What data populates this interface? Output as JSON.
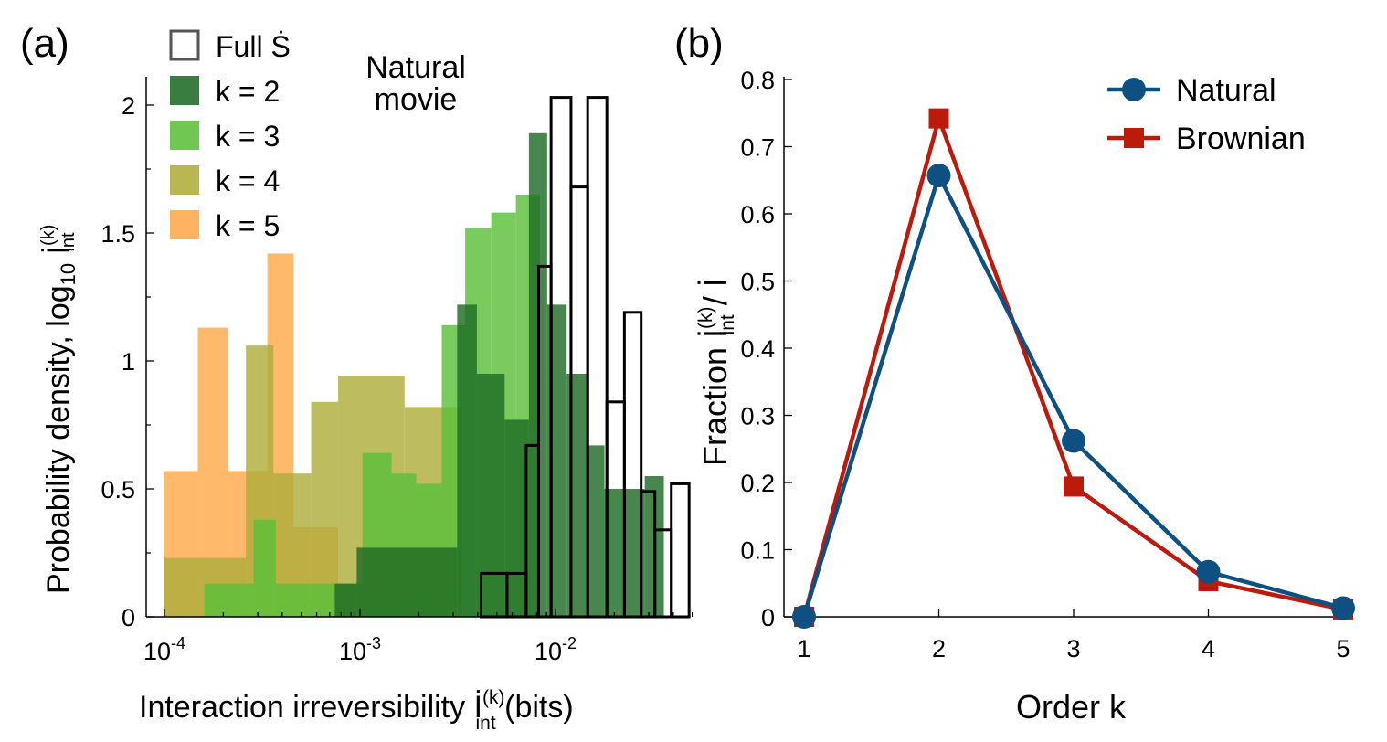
{
  "panels": {
    "a_label": "(a)",
    "b_label": "(b)"
  },
  "colors": {
    "full": "#000000",
    "k2": "#1f6b25",
    "k3": "#5cbf3a",
    "k4": "#aead3a",
    "k5": "#ffa94a",
    "natural": "#0e5081",
    "brownian": "#bb1a0c"
  },
  "chart_data": [
    {
      "panel": "a",
      "type": "histogram",
      "annotation": [
        "Natural",
        "movie"
      ],
      "xlabel": "Interaction irreversibility İ(k)int (bits)",
      "xlabel_parts": {
        "pre": "Interaction irreversibility ",
        "sym": "İ",
        "sup": "(k)",
        "sub": "int",
        "post": " (bits)"
      },
      "ylabel": "Probability density, log10 İ(k)int",
      "ylabel_parts": {
        "pre": "Probability density, log",
        "base_sub": "10",
        "sym": "İ",
        "sup": "(k)",
        "sub": "int"
      },
      "x_scale": "log",
      "xlim": [
        0.0001,
        0.05
      ],
      "ylim": [
        0,
        2.1
      ],
      "x_ticks": [
        {
          "value": 0.0001,
          "base": "10",
          "exp": "-4"
        },
        {
          "value": 0.001,
          "base": "10",
          "exp": "-3"
        },
        {
          "value": 0.01,
          "base": "10",
          "exp": "-2"
        }
      ],
      "y_ticks": [
        {
          "value": 0,
          "label": "0"
        },
        {
          "value": 0.5,
          "label": "0.5"
        },
        {
          "value": 1,
          "label": "1"
        },
        {
          "value": 1.5,
          "label": "1.5"
        },
        {
          "value": 2,
          "label": "2"
        }
      ],
      "legend_position": "top-left",
      "series": [
        {
          "name": "k = 5",
          "key": "k5",
          "style": "filled",
          "edges": [
            0.0001,
            0.000148,
            0.000211,
            0.000336,
            0.000457,
            0.000773
          ],
          "values": [
            0.57,
            1.13,
            0.57,
            1.42,
            0.35
          ]
        },
        {
          "name": "k = 4",
          "key": "k4",
          "style": "filled",
          "edges": [
            0.0001,
            0.000261,
            0.000361,
            0.000563,
            0.000773,
            0.00169,
            0.00327
          ],
          "values": [
            0.23,
            1.06,
            0.56,
            0.84,
            0.94,
            0.82
          ]
        },
        {
          "name": "k = 3",
          "key": "k3",
          "style": "filled",
          "edges": [
            0.00016,
            0.000286,
            0.000371,
            0.000566,
            0.00103,
            0.00145,
            0.00194,
            0.00262,
            0.00345,
            0.00469,
            0.00627,
            0.00832
          ],
          "values": [
            0.13,
            0.38,
            0.13,
            0.13,
            0.64,
            0.56,
            0.52,
            1.14,
            1.52,
            1.58,
            1.65
          ]
        },
        {
          "name": "k = 2",
          "key": "k2",
          "style": "filled",
          "edges": [
            0.000743,
            0.000962,
            0.00314,
            0.00396,
            0.00549,
            0.00731,
            0.00906,
            0.0114,
            0.0144,
            0.0178,
            0.0223,
            0.0286,
            0.0358
          ],
          "values": [
            0.13,
            0.27,
            1.22,
            0.95,
            0.77,
            1.89,
            1.22,
            0.95,
            0.67,
            0.5,
            0.5,
            0.55
          ]
        },
        {
          "name": "Full Ṡ",
          "key": "full",
          "style": "outline",
          "edges": [
            0.00416,
            0.00565,
            0.00708,
            0.00819,
            0.00949,
            0.012,
            0.0146,
            0.0183,
            0.0225,
            0.0274,
            0.0322,
            0.0391,
            0.0482
          ],
          "values": [
            0.17,
            0.17,
            0.67,
            1.37,
            2.03,
            1.68,
            2.03,
            0.84,
            1.19,
            0.49,
            0.34,
            0.52
          ]
        }
      ]
    },
    {
      "panel": "b",
      "type": "line",
      "xlabel": "Order k",
      "ylabel": "Fraction İ(k)int / İ",
      "ylabel_parts": {
        "pre": "Fraction ",
        "sym": "İ",
        "sup": "(k)",
        "sub": "int",
        "mid": " / ",
        "sym2": "İ"
      },
      "x": [
        1,
        2,
        3,
        4,
        5
      ],
      "xlim": [
        1,
        5
      ],
      "ylim": [
        0,
        0.8
      ],
      "x_ticks": [
        "1",
        "2",
        "3",
        "4",
        "5"
      ],
      "y_ticks": [
        {
          "value": 0,
          "label": "0"
        },
        {
          "value": 0.1,
          "label": "0.1"
        },
        {
          "value": 0.2,
          "label": "0.2"
        },
        {
          "value": 0.3,
          "label": "0.3"
        },
        {
          "value": 0.4,
          "label": "0.4"
        },
        {
          "value": 0.5,
          "label": "0.5"
        },
        {
          "value": 0.6,
          "label": "0.6"
        },
        {
          "value": 0.7,
          "label": "0.7"
        },
        {
          "value": 0.8,
          "label": "0.8"
        }
      ],
      "legend_position": "top-right",
      "series": [
        {
          "name": "Natural",
          "key": "natural",
          "marker": "circle",
          "values": [
            0,
            0.657,
            0.262,
            0.067,
            0.013
          ]
        },
        {
          "name": "Brownian",
          "key": "brownian",
          "marker": "square",
          "values": [
            0,
            0.742,
            0.194,
            0.053,
            0.011
          ]
        }
      ]
    }
  ]
}
